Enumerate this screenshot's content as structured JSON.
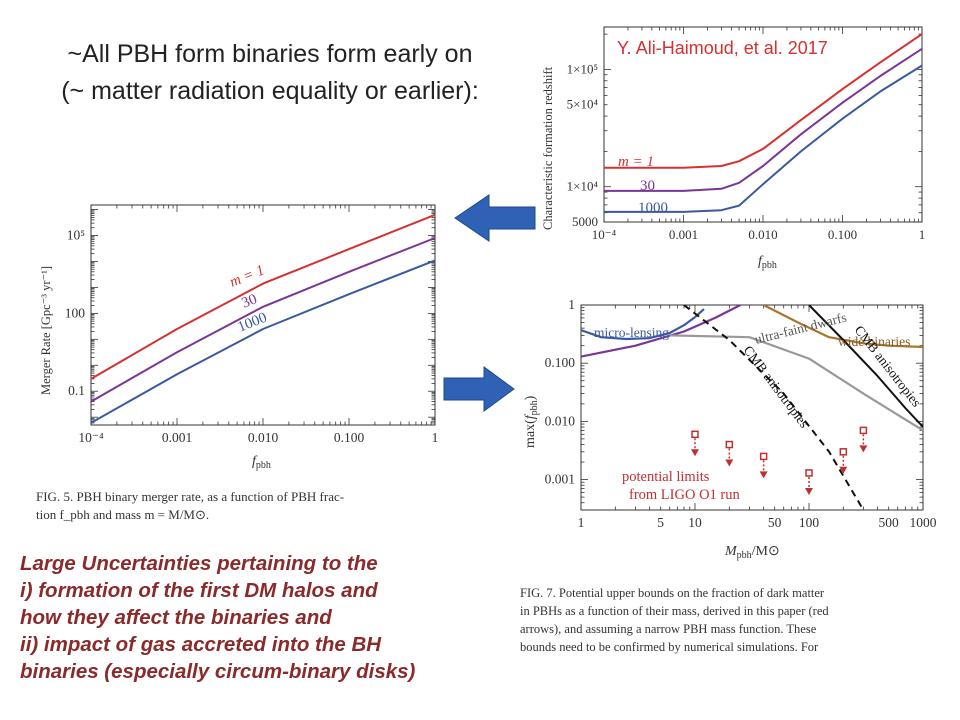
{
  "headline": {
    "line1": "~All PBH form binaries form early on",
    "line2": "(~ matter radiation equality or earlier):"
  },
  "chart_data": [
    {
      "id": "fig5",
      "type": "line",
      "ylabel": "Merger Rate [Gpc⁻³ yr⁻¹]",
      "xlabel": "f_pbh",
      "x_scale": "log",
      "y_scale": "log",
      "xlim": [
        0.0001,
        1
      ],
      "ylim": [
        0.005,
        1500000
      ],
      "x_ticks": [
        0.0001,
        0.001,
        0.01,
        0.1,
        1
      ],
      "x_tick_labels": [
        "10⁻⁴",
        "0.001",
        "0.010",
        "0.100",
        "1"
      ],
      "y_ticks": [
        0.1,
        100,
        100000
      ],
      "y_tick_labels": [
        "0.1",
        "100",
        "10⁵"
      ],
      "x": [
        0.0001,
        0.001,
        0.01,
        0.1,
        1
      ],
      "series": [
        {
          "name": "m = 1",
          "color": "#d63030",
          "values": [
            0.3,
            25,
            1400,
            30000,
            630000
          ]
        },
        {
          "name": "30",
          "color": "#7a3595",
          "values": [
            0.04,
            3.2,
            180,
            4000,
            80000
          ]
        },
        {
          "name": "1000",
          "color": "#3a5aa0",
          "values": [
            0.006,
            0.45,
            25,
            550,
            11000
          ]
        }
      ],
      "caption": "FIG. 5.  PBH binary merger rate, as a function of PBH fraction f_pbh and mass m = M/M⊙."
    },
    {
      "id": "fig-z",
      "type": "line",
      "ylabel": "Characteristic formation redshift",
      "xlabel": "f_pbh",
      "x_scale": "log",
      "y_scale": "log",
      "xlim": [
        0.0001,
        1
      ],
      "ylim": [
        5000,
        230000
      ],
      "x_ticks": [
        0.0001,
        0.001,
        0.01,
        0.1,
        1
      ],
      "x_tick_labels": [
        "10⁻⁴",
        "0.001",
        "0.010",
        "0.100",
        "1"
      ],
      "y_ticks": [
        5000,
        10000,
        50000,
        100000
      ],
      "y_tick_labels": [
        "5000",
        "1×10⁴",
        "5×10⁴",
        "1×10⁵"
      ],
      "x": [
        0.0001,
        0.001,
        0.003,
        0.005,
        0.01,
        0.03,
        0.1,
        0.3,
        1
      ],
      "series": [
        {
          "name": "m = 1",
          "color": "#d63030",
          "values": [
            14500,
            14500,
            15000,
            16500,
            21000,
            37000,
            68000,
            115000,
            200000
          ]
        },
        {
          "name": "30",
          "color": "#7a3595",
          "values": [
            9200,
            9200,
            9600,
            10800,
            15000,
            28000,
            52000,
            88000,
            150000
          ]
        },
        {
          "name": "1000",
          "color": "#3a5aa0",
          "values": [
            6100,
            6100,
            6300,
            6900,
            10500,
            20000,
            38000,
            65000,
            108000
          ]
        }
      ],
      "annotation": "Y. Ali-Haimoud, et al. 2017"
    },
    {
      "id": "fig7",
      "type": "line",
      "ylabel": "max(f_pbh)",
      "xlabel": "M_pbh/M⊙",
      "x_scale": "log",
      "y_scale": "log",
      "xlim": [
        1,
        1000
      ],
      "ylim": [
        0.0003,
        1
      ],
      "x_ticks": [
        1,
        5,
        10,
        50,
        100,
        500,
        1000
      ],
      "x_tick_labels": [
        "1",
        "5",
        "10",
        "50",
        "100",
        "500",
        "1000"
      ],
      "y_ticks": [
        0.001,
        0.01,
        0.1,
        1
      ],
      "y_tick_labels": [
        "0.001",
        "0.010",
        "0.100",
        "1"
      ],
      "series": [
        {
          "name": "micro-lensing",
          "color": "#3a5aa0",
          "x": [
            1,
            1.5,
            2.5,
            4,
            6,
            8,
            10,
            12
          ],
          "values": [
            0.37,
            0.28,
            0.26,
            0.27,
            0.33,
            0.45,
            0.62,
            0.85
          ]
        },
        {
          "name": "micro-lensing envelope",
          "color": "#7a3595",
          "x": [
            1,
            3,
            8,
            15,
            25
          ],
          "values": [
            0.13,
            0.2,
            0.35,
            0.6,
            1
          ]
        },
        {
          "name": "ultra-faint dwarfs",
          "color": "#999999",
          "x": [
            6,
            30,
            100,
            300,
            1000
          ],
          "values": [
            0.3,
            0.28,
            0.12,
            0.03,
            0.007
          ]
        },
        {
          "name": "wide binaries",
          "color": "#a87530",
          "x": [
            40,
            80,
            150,
            300,
            500,
            1000
          ],
          "values": [
            1,
            0.5,
            0.28,
            0.22,
            0.2,
            0.19
          ]
        },
        {
          "name": "CMB anisotropies (solid)",
          "color": "#111111",
          "x": [
            100,
            200,
            400,
            700,
            1000
          ],
          "values": [
            1,
            0.25,
            0.06,
            0.017,
            0.008
          ]
        },
        {
          "name": "CMB anisotropies (dashed)",
          "color": "#111111",
          "dashed": true,
          "x": [
            8,
            20,
            60,
            150,
            300
          ],
          "values": [
            1,
            0.25,
            0.03,
            0.003,
            0.0003
          ]
        }
      ],
      "line_labels": {
        "micro_lensing": "micro-lensing",
        "ultra_faint": "ultra-faint dwarfs",
        "wide_binaries": "wide binaries",
        "cmb_solid": "CMB anisotropies",
        "cmb_dashed": "CMB anisotropies",
        "potential": [
          "potential limits",
          "from LIGO O1 run"
        ]
      },
      "arrows": [
        {
          "m": 10,
          "f": 0.006
        },
        {
          "m": 20,
          "f": 0.004
        },
        {
          "m": 40,
          "f": 0.0025
        },
        {
          "m": 100,
          "f": 0.0013
        },
        {
          "m": 200,
          "f": 0.003
        },
        {
          "m": 300,
          "f": 0.007
        }
      ],
      "arrow_color": "#c03030",
      "caption": "FIG. 7.  Potential upper bounds on the fraction of dark matter in PBHs as a function of their mass, derived in this paper (red arrows), and assuming a narrow PBH mass function.  These bounds need to be confirmed by numerical simulations.  For"
    }
  ],
  "labels": {
    "fig5": {
      "m1": "m = 1",
      "m30": "30",
      "m1000": "1000",
      "ylabel": "Merger Rate [Gpc⁻³ yr⁻¹]"
    },
    "figz": {
      "m1": "m = 1",
      "m30": "30",
      "m1000": "1000",
      "ylabel": "Characteristic formation redshift",
      "citation": "Y. Ali-Haimoud, et al. 2017"
    },
    "f_main": "f",
    "f_sub": "pbh",
    "fig7": {
      "ylabel_pre": "max(",
      "f_main": "f",
      "f_sub": "pbh",
      "ylabel_post": ")",
      "xlabel_M": "M",
      "xlabel_sub": "pbh",
      "xlabel_post": "/M⊙"
    }
  },
  "captions": {
    "fig5_line1": "FIG. 5.  PBH binary merger rate, as a function of PBH frac-",
    "fig5_line2": "tion f_pbh and mass m = M/M⊙.",
    "fig7_line1": "FIG. 7.  Potential upper bounds on the fraction of dark matter",
    "fig7_line2": "in PBHs as a function of their mass, derived in this paper (red",
    "fig7_line3": "arrows), and assuming a narrow PBH mass function.  These",
    "fig7_line4": "bounds need to be confirmed by numerical simulations.  For"
  },
  "uncertainties": {
    "line1": "Large Uncertainties pertaining to the",
    "line2": "i) formation of the first DM halos and",
    "line3": "how they affect the binaries and",
    "line4": "ii) impact of gas accreted into the BH",
    "line5": "binaries (especially circum-binary disks)"
  },
  "colors": {
    "arrow_blue": "#2f62b4",
    "red": "#d63030",
    "purple": "#7a3595",
    "blue": "#3a5aa0",
    "dark_red": "#8a2a2a"
  }
}
